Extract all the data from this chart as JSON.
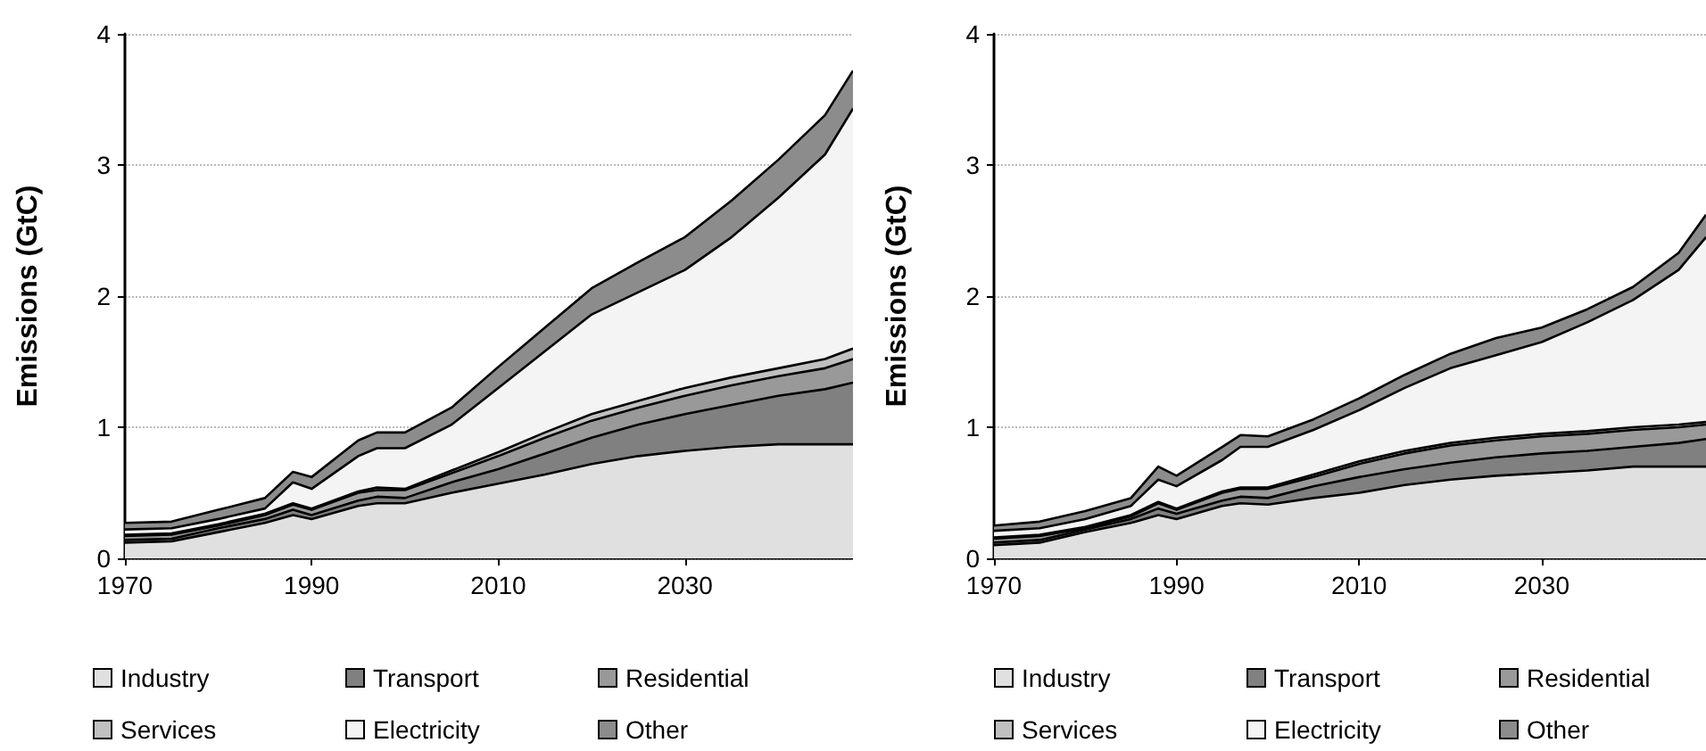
{
  "chart_data": [
    {
      "type": "area",
      "stacked": true,
      "ylabel": "Emissions (GtC)",
      "x": [
        1970,
        1975,
        1980,
        1985,
        1988,
        1990,
        1995,
        1997,
        2000,
        2005,
        2010,
        2015,
        2020,
        2025,
        2030,
        2035,
        2040,
        2045,
        2048
      ],
      "series": [
        {
          "name": "Industry",
          "color": "#e0e0e0",
          "values": [
            0.12,
            0.13,
            0.2,
            0.27,
            0.33,
            0.3,
            0.4,
            0.42,
            0.42,
            0.5,
            0.57,
            0.64,
            0.72,
            0.78,
            0.82,
            0.85,
            0.87,
            0.87,
            0.87
          ]
        },
        {
          "name": "Transport",
          "color": "#808080",
          "values": [
            0.02,
            0.02,
            0.03,
            0.03,
            0.04,
            0.03,
            0.04,
            0.05,
            0.04,
            0.08,
            0.11,
            0.16,
            0.2,
            0.24,
            0.28,
            0.32,
            0.37,
            0.42,
            0.47
          ]
        },
        {
          "name": "Residential",
          "color": "#999999",
          "values": [
            0.03,
            0.03,
            0.02,
            0.03,
            0.04,
            0.04,
            0.06,
            0.05,
            0.06,
            0.07,
            0.1,
            0.12,
            0.13,
            0.13,
            0.14,
            0.15,
            0.15,
            0.16,
            0.18
          ]
        },
        {
          "name": "Services",
          "color": "#c0c0c0",
          "values": [
            0.01,
            0.01,
            0.01,
            0.01,
            0.01,
            0.01,
            0.01,
            0.02,
            0.01,
            0.02,
            0.03,
            0.04,
            0.05,
            0.05,
            0.06,
            0.06,
            0.06,
            0.07,
            0.08
          ]
        },
        {
          "name": "Electricity",
          "color": "#f4f4f4",
          "values": [
            0.04,
            0.04,
            0.04,
            0.04,
            0.16,
            0.15,
            0.27,
            0.3,
            0.31,
            0.35,
            0.49,
            0.62,
            0.76,
            0.83,
            0.9,
            1.07,
            1.3,
            1.56,
            1.83
          ]
        },
        {
          "name": "Other",
          "color": "#8c8c8c",
          "values": [
            0.05,
            0.05,
            0.07,
            0.08,
            0.08,
            0.09,
            0.12,
            0.12,
            0.12,
            0.13,
            0.16,
            0.18,
            0.2,
            0.23,
            0.25,
            0.28,
            0.29,
            0.3,
            0.29
          ]
        }
      ],
      "xlim": [
        1970,
        2048
      ],
      "xticks": [
        1970,
        1990,
        2010,
        2030
      ],
      "ylim": [
        0,
        4
      ],
      "yticks": [
        0,
        1,
        2,
        3,
        4
      ],
      "grid": "y",
      "legend": "bottom"
    },
    {
      "type": "area",
      "stacked": true,
      "ylabel": "Emissions (GtC)",
      "x": [
        1970,
        1975,
        1980,
        1985,
        1988,
        1990,
        1995,
        1997,
        2000,
        2005,
        2010,
        2015,
        2020,
        2025,
        2030,
        2035,
        2040,
        2045,
        2048
      ],
      "series": [
        {
          "name": "Industry",
          "color": "#e0e0e0",
          "values": [
            0.1,
            0.12,
            0.2,
            0.27,
            0.33,
            0.3,
            0.4,
            0.42,
            0.41,
            0.46,
            0.5,
            0.56,
            0.6,
            0.63,
            0.65,
            0.67,
            0.7,
            0.7,
            0.7
          ]
        },
        {
          "name": "Transport",
          "color": "#808080",
          "values": [
            0.02,
            0.02,
            0.02,
            0.03,
            0.05,
            0.04,
            0.04,
            0.05,
            0.05,
            0.09,
            0.12,
            0.12,
            0.13,
            0.14,
            0.15,
            0.15,
            0.15,
            0.18,
            0.21
          ]
        },
        {
          "name": "Residential",
          "color": "#999999",
          "values": [
            0.03,
            0.03,
            0.01,
            0.02,
            0.04,
            0.03,
            0.06,
            0.06,
            0.07,
            0.07,
            0.1,
            0.12,
            0.13,
            0.13,
            0.13,
            0.13,
            0.13,
            0.12,
            0.11
          ]
        },
        {
          "name": "Services",
          "color": "#c0c0c0",
          "values": [
            0.01,
            0.01,
            0.01,
            0.01,
            0.01,
            0.01,
            0.01,
            0.01,
            0.01,
            0.02,
            0.02,
            0.02,
            0.02,
            0.02,
            0.02,
            0.02,
            0.02,
            0.02,
            0.02
          ]
        },
        {
          "name": "Electricity",
          "color": "#f4f4f4",
          "values": [
            0.05,
            0.05,
            0.06,
            0.07,
            0.17,
            0.17,
            0.24,
            0.31,
            0.31,
            0.34,
            0.39,
            0.48,
            0.57,
            0.63,
            0.7,
            0.83,
            0.97,
            1.18,
            1.41
          ]
        },
        {
          "name": "Other",
          "color": "#8c8c8c",
          "values": [
            0.04,
            0.05,
            0.06,
            0.06,
            0.1,
            0.08,
            0.1,
            0.09,
            0.08,
            0.08,
            0.09,
            0.1,
            0.11,
            0.13,
            0.11,
            0.1,
            0.1,
            0.13,
            0.17
          ]
        }
      ],
      "xlim": [
        1970,
        2048
      ],
      "xticks": [
        1970,
        1990,
        2010,
        2030
      ],
      "ylim": [
        0,
        4
      ],
      "yticks": [
        0,
        1,
        2,
        3,
        4
      ],
      "grid": "y",
      "legend": "bottom"
    }
  ]
}
